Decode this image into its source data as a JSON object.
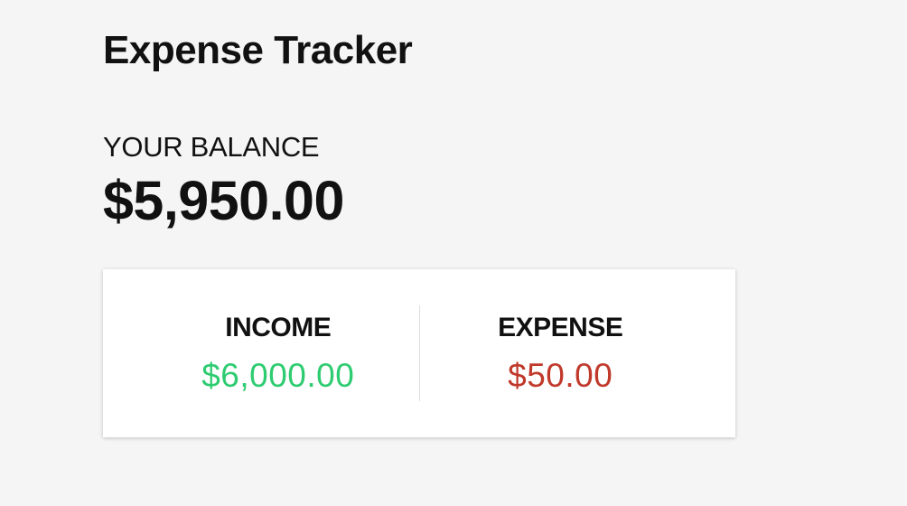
{
  "app": {
    "title": "Expense Tracker"
  },
  "balance": {
    "label": "YOUR BALANCE",
    "value": "$5,950.00"
  },
  "summary": {
    "income": {
      "label": "INCOME",
      "value": "$6,000.00",
      "color": "#2ecc71"
    },
    "expense": {
      "label": "EXPENSE",
      "value": "$50.00",
      "color": "#c0392b"
    }
  }
}
